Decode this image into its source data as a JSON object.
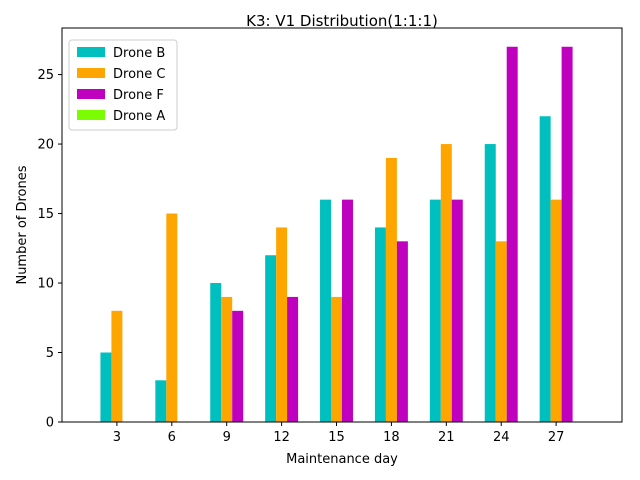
{
  "chart_data": {
    "type": "bar",
    "title": "K3: V1 Distribution(1:1:1)",
    "xlabel": "Maintenance day",
    "ylabel": "Number of Drones",
    "categories": [
      "3",
      "6",
      "9",
      "12",
      "15",
      "18",
      "21",
      "24",
      "27"
    ],
    "series": [
      {
        "name": "Drone B",
        "color": "#00bfbf",
        "values": [
          5,
          3,
          10,
          12,
          16,
          14,
          16,
          20,
          22
        ]
      },
      {
        "name": "Drone C",
        "color": "#ffa500",
        "values": [
          8,
          15,
          9,
          14,
          9,
          19,
          20,
          13,
          16
        ]
      },
      {
        "name": "Drone F",
        "color": "#bf00bf",
        "values": [
          0,
          0,
          8,
          9,
          16,
          13,
          16,
          27,
          27
        ]
      },
      {
        "name": "Drone A",
        "color": "#7cfc00",
        "values": [
          0,
          0,
          0,
          0,
          0,
          0,
          0,
          0,
          0
        ]
      }
    ],
    "ylim": [
      0,
      28.35
    ],
    "yticks": [
      0,
      5,
      10,
      15,
      20,
      25
    ],
    "grid": false,
    "legend_position": "top-left"
  }
}
